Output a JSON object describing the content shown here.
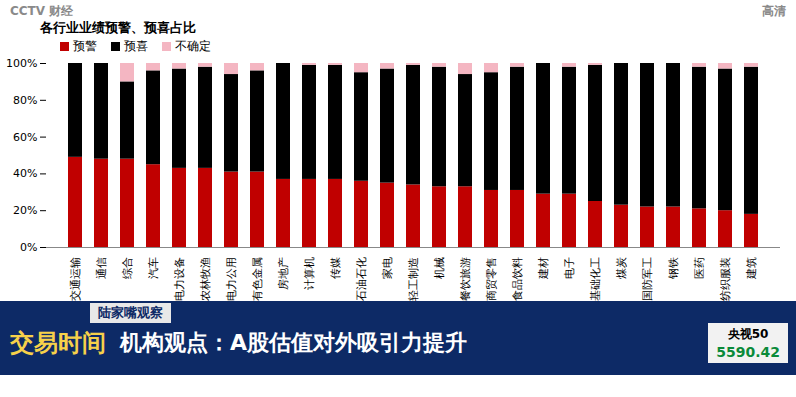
{
  "chart_data": {
    "type": "bar",
    "stacked": true,
    "title": "各行业业绩预警、预喜占比",
    "categories": [
      "交通运输",
      "通信",
      "综合",
      "汽车",
      "电力设备",
      "农林牧渔",
      "电力公用",
      "有色金属",
      "房地产",
      "计算机",
      "传媒",
      "石油石化",
      "家电",
      "轻工制造",
      "机械",
      "餐饮旅游",
      "商贸零售",
      "食品饮料",
      "建材",
      "电子",
      "基础化工",
      "煤炭",
      "国防军工",
      "钢铁",
      "医药",
      "纺织服装",
      "建筑"
    ],
    "series": [
      {
        "name": "预警",
        "color": "#c00000",
        "values": [
          49,
          48,
          48,
          45,
          43,
          43,
          41,
          41,
          37,
          37,
          37,
          36,
          35,
          34,
          33,
          33,
          31,
          31,
          29,
          29,
          25,
          23,
          22,
          22,
          21,
          20,
          18
        ]
      },
      {
        "name": "预喜",
        "color": "#000000",
        "values": [
          51,
          52,
          42,
          51,
          54,
          55,
          53,
          55,
          63,
          62,
          62,
          59,
          62,
          65,
          65,
          61,
          64,
          67,
          71,
          69,
          74,
          77,
          78,
          78,
          77,
          77,
          80
        ]
      },
      {
        "name": "不确定",
        "color": "#f4b6c2",
        "values": [
          0,
          0,
          10,
          4,
          3,
          2,
          6,
          4,
          0,
          1,
          1,
          5,
          3,
          1,
          2,
          6,
          5,
          2,
          0,
          2,
          1,
          0,
          0,
          0,
          2,
          3,
          2
        ]
      }
    ],
    "ylim": [
      0,
      100
    ],
    "yticks": [
      {
        "value": 0,
        "label": "0%"
      },
      {
        "value": 20,
        "label": "20%"
      },
      {
        "value": 40,
        "label": "40%"
      },
      {
        "value": 60,
        "label": "60%"
      },
      {
        "value": 80,
        "label": "80%"
      },
      {
        "value": 100,
        "label": "100%"
      }
    ],
    "grid": false,
    "legend": "top-left",
    "annotations": [
      "CCTV",
      "财经",
      "高清",
      "陆家嘴观察",
      "交易时间",
      "机构观点：A股估值对外吸引力提升",
      "央视50",
      "5590.42"
    ]
  }
}
